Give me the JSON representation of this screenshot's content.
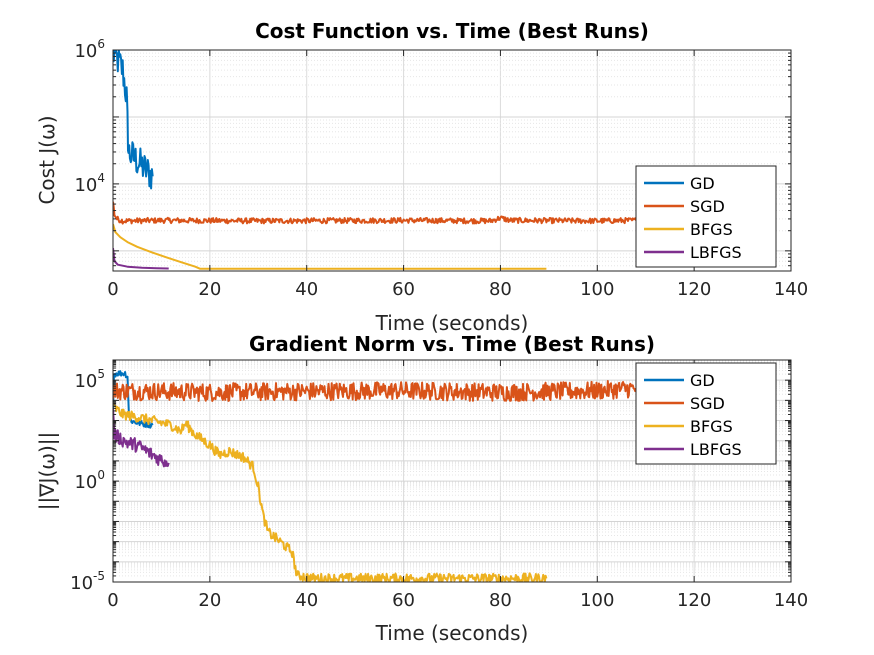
{
  "chart_data": [
    {
      "type": "line",
      "title": "Cost Function vs. Time (Best Runs)",
      "xlabel": "Time (seconds)",
      "ylabel": "Cost J(ω)",
      "xlim": [
        0,
        140
      ],
      "ylim": [
        500,
        1000000
      ],
      "yscale": "log",
      "xticks": [
        "0",
        "20",
        "40",
        "60",
        "80",
        "100",
        "120",
        "140"
      ],
      "yticks": [
        {
          "value": 10000,
          "base": "10",
          "exp": "4"
        },
        {
          "value": 1000000,
          "base": "10",
          "exp": "6"
        }
      ],
      "grid": true,
      "legend": "bottom-right",
      "legend_entries": [
        "GD",
        "SGD",
        "BFGS",
        "LBFGS"
      ],
      "series": [
        {
          "name": "GD",
          "color": "#0072BD",
          "noise": 0.25,
          "x": [
            0,
            0.3,
            1.0,
            2.0,
            2.8,
            3.0,
            3.2,
            3.5,
            5.0,
            6.5,
            8.2
          ],
          "y": [
            900000,
            800000,
            700000,
            500000,
            200000,
            80000,
            30000,
            28000,
            22000,
            17000,
            13000
          ]
        },
        {
          "name": "SGD",
          "color": "#D95319",
          "noise": 0.04,
          "x": [
            0,
            0.3,
            0.8,
            2,
            10,
            30,
            60,
            78,
            80,
            82,
            100,
            108
          ],
          "y": [
            5500,
            3500,
            3000,
            2800,
            2850,
            2800,
            2850,
            2800,
            3100,
            2850,
            2800,
            2850
          ]
        },
        {
          "name": "BFGS",
          "color": "#EDB120",
          "noise": 0,
          "x": [
            0,
            0.5,
            1.5,
            3,
            5,
            8,
            11,
            14,
            17,
            18,
            30,
            60,
            89.5
          ],
          "y": [
            2500,
            1900,
            1600,
            1350,
            1150,
            950,
            800,
            680,
            580,
            540,
            540,
            540,
            540
          ]
        },
        {
          "name": "LBFGS",
          "color": "#7E2F8E",
          "noise": 0,
          "x": [
            0,
            0.3,
            1,
            3,
            6,
            9,
            11.5
          ],
          "y": [
            1100,
            700,
            620,
            580,
            560,
            550,
            545
          ]
        }
      ]
    },
    {
      "type": "line",
      "title": "Gradient Norm vs. Time (Best Runs)",
      "xlabel": "Time (seconds)",
      "ylabel": "||∇J(ω)||",
      "xlim": [
        0,
        140
      ],
      "ylim": [
        1e-05,
        1000000
      ],
      "yscale": "log",
      "xticks": [
        "0",
        "20",
        "40",
        "60",
        "80",
        "100",
        "120",
        "140"
      ],
      "yticks": [
        {
          "value": 1e-05,
          "base": "10",
          "exp": "-5"
        },
        {
          "value": 1,
          "base": "10",
          "exp": "0"
        },
        {
          "value": 100000,
          "base": "10",
          "exp": "5"
        }
      ],
      "grid": true,
      "legend": "top-right",
      "legend_entries": [
        "GD",
        "SGD",
        "BFGS",
        "LBFGS"
      ],
      "series": [
        {
          "name": "GD",
          "color": "#0072BD",
          "noise": 0.15,
          "x": [
            0,
            0.2,
            1,
            2.5,
            3.0,
            3.3,
            4,
            6,
            8.2
          ],
          "y": [
            5000,
            200000,
            220000,
            220000,
            150000,
            1500,
            900,
            700,
            600
          ]
        },
        {
          "name": "SGD",
          "color": "#D95319",
          "noise": 0.45,
          "x": [
            0,
            20,
            40,
            60,
            80,
            100,
            108
          ],
          "y": [
            30000,
            25000,
            28000,
            30000,
            25000,
            30000,
            40000
          ]
        },
        {
          "name": "BFGS",
          "color": "#EDB120",
          "noise": 0.25,
          "x": [
            0,
            2,
            5,
            8,
            12,
            14,
            15,
            17,
            20,
            22,
            24,
            27,
            29,
            30,
            31,
            32,
            35,
            37,
            38,
            39,
            41,
            60,
            89.5
          ],
          "y": [
            5000,
            2000,
            1500,
            1000,
            600,
            300,
            700,
            200,
            60,
            20,
            30,
            15,
            5,
            0.5,
            0.02,
            0.003,
            0.0008,
            0.0003,
            2e-05,
            2e-05,
            1.5e-05,
            1.5e-05,
            1.5e-05
          ]
        },
        {
          "name": "LBFGS",
          "color": "#7E2F8E",
          "noise": 0.35,
          "x": [
            0,
            0.3,
            1,
            3,
            5,
            7,
            9,
            11.5
          ],
          "y": [
            5000,
            200,
            150,
            80,
            60,
            30,
            15,
            8
          ]
        }
      ]
    }
  ]
}
